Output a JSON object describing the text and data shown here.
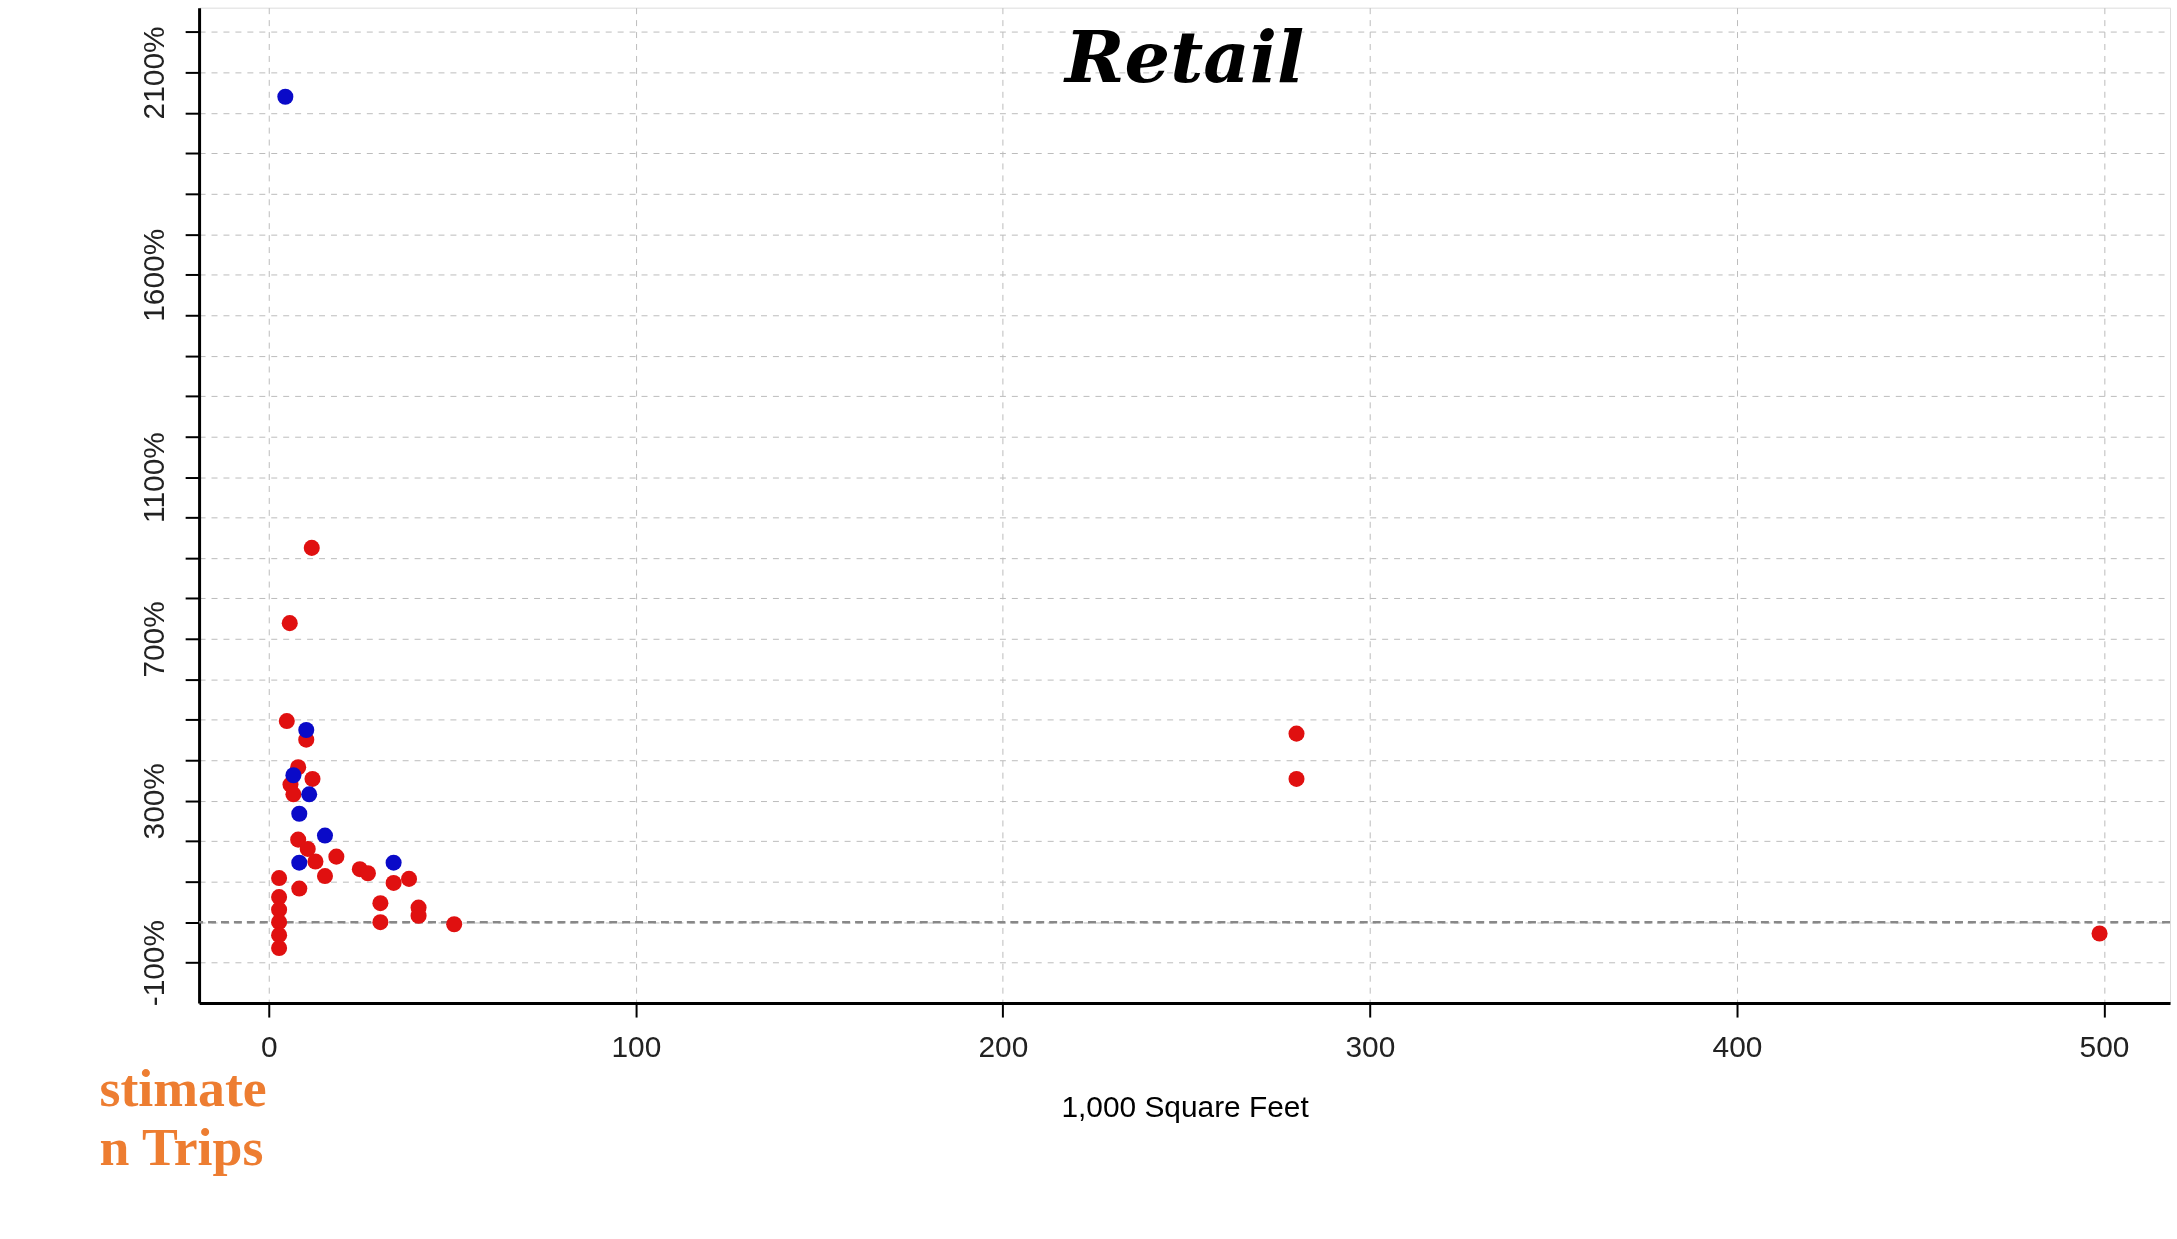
{
  "chart_data": {
    "type": "scatter",
    "title": "Retail",
    "xlabel": "1,000 Square Feet",
    "xlim": [
      -19,
      518
    ],
    "xticks": [
      0,
      100,
      200,
      300,
      400,
      500
    ],
    "ylim": [
      -200,
      2260
    ],
    "yticks": [
      {
        "value": -100,
        "label": "-100%"
      },
      {
        "value": 0,
        "label": null
      },
      {
        "value": 100,
        "label": null
      },
      {
        "value": 200,
        "label": null
      },
      {
        "value": 300,
        "label": "300%"
      },
      {
        "value": 400,
        "label": null
      },
      {
        "value": 500,
        "label": null
      },
      {
        "value": 600,
        "label": null
      },
      {
        "value": 700,
        "label": "700%"
      },
      {
        "value": 800,
        "label": null
      },
      {
        "value": 900,
        "label": null
      },
      {
        "value": 1000,
        "label": null
      },
      {
        "value": 1100,
        "label": "1100%"
      },
      {
        "value": 1200,
        "label": null
      },
      {
        "value": 1300,
        "label": null
      },
      {
        "value": 1400,
        "label": null
      },
      {
        "value": 1500,
        "label": null
      },
      {
        "value": 1600,
        "label": "1600%"
      },
      {
        "value": 1700,
        "label": null
      },
      {
        "value": 1800,
        "label": null
      },
      {
        "value": 1900,
        "label": null
      },
      {
        "value": 2000,
        "label": null
      },
      {
        "value": 2100,
        "label": "2100%"
      },
      {
        "value": 2200,
        "label": null
      }
    ],
    "grid": true,
    "ref_lines": [
      {
        "axis": "y",
        "value": 0,
        "color": "#888888",
        "line_style": "dashed"
      }
    ],
    "annotations": [
      "stimate",
      "n Trips"
    ],
    "series": [
      {
        "color": "#e01010",
        "x": [
          5.7,
          4.9,
          10.2,
          8,
          11.9,
          5.9,
          6.7,
          8,
          10.6,
          12.7,
          15.3,
          18.4,
          24.8,
          27,
          34,
          38.2,
          2.8,
          8.3,
          2.8,
          2.8,
          2.8,
          2.8,
          2.8,
          30.4,
          30.4,
          40.8,
          40.8,
          50.5,
          11.7,
          280,
          280,
          498.8
        ],
        "values": [
          739,
          497,
          451,
          383,
          354,
          340,
          316,
          204,
          181,
          150,
          114,
          162,
          131,
          121,
          97,
          107,
          109,
          83,
          62,
          31,
          0,
          -32,
          -64,
          47,
          0,
          36,
          16,
          -5,
          925,
          466,
          354,
          -28
        ]
      },
      {
        "color": "#0a0ac8",
        "x": [
          4.5,
          10.2,
          11,
          8.3,
          15.3,
          8.3,
          34,
          6.7
        ],
        "values": [
          2040,
          475,
          316,
          268,
          214,
          147,
          147,
          363
        ]
      }
    ]
  }
}
